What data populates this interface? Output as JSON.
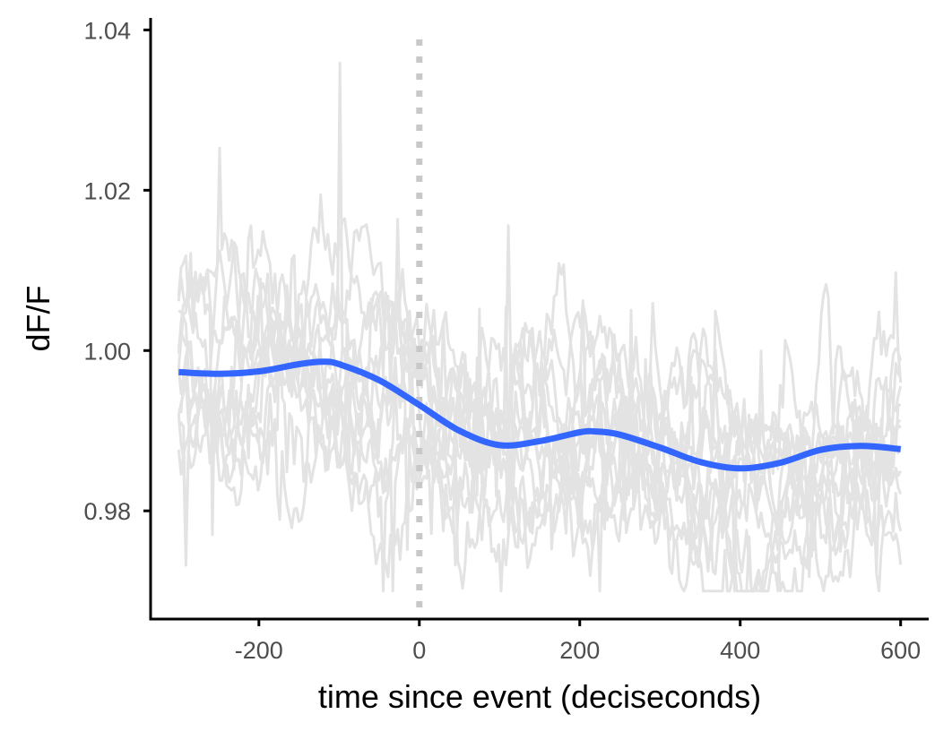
{
  "chart_data": {
    "type": "line",
    "title": "",
    "xlabel": "time since event (deciseconds)",
    "ylabel": "dF/F",
    "xlim": [
      -335,
      635
    ],
    "ylim": [
      0.9665,
      1.0415
    ],
    "x_ticks": [
      -200,
      0,
      200,
      400,
      600
    ],
    "x_tick_labels": [
      "-200",
      "0",
      "200",
      "400",
      "600"
    ],
    "y_ticks": [
      0.98,
      1.0,
      1.02,
      1.04
    ],
    "y_tick_labels": [
      "0.98",
      "1.00",
      "1.02",
      "1.04"
    ],
    "event_marker_x": 0,
    "grid": false,
    "legend": "none",
    "colors": {
      "traces": "#e3e3e3",
      "smooth": "#3366ff",
      "ribbon": "#c8c8c8",
      "event_line": "#c8c8c8",
      "axis": "#000000"
    },
    "trace_generation": {
      "count": 12,
      "x_start": -300,
      "x_end": 600,
      "step": 3,
      "noise_sd": 0.0065,
      "min": 0.97,
      "max": 1.0375
    },
    "smooth": {
      "x": [
        -300,
        -250,
        -200,
        -150,
        -120,
        -100,
        -50,
        0,
        50,
        100,
        150,
        200,
        220,
        250,
        300,
        350,
        400,
        450,
        500,
        550,
        600
      ],
      "y": [
        0.9973,
        0.9971,
        0.9974,
        0.9983,
        0.9986,
        0.9983,
        0.9963,
        0.9932,
        0.99,
        0.9882,
        0.9887,
        0.9898,
        0.9899,
        0.9895,
        0.9879,
        0.9861,
        0.9853,
        0.986,
        0.9876,
        0.9881,
        0.9877
      ],
      "ribbon_halfwidth": 0.00025
    }
  }
}
